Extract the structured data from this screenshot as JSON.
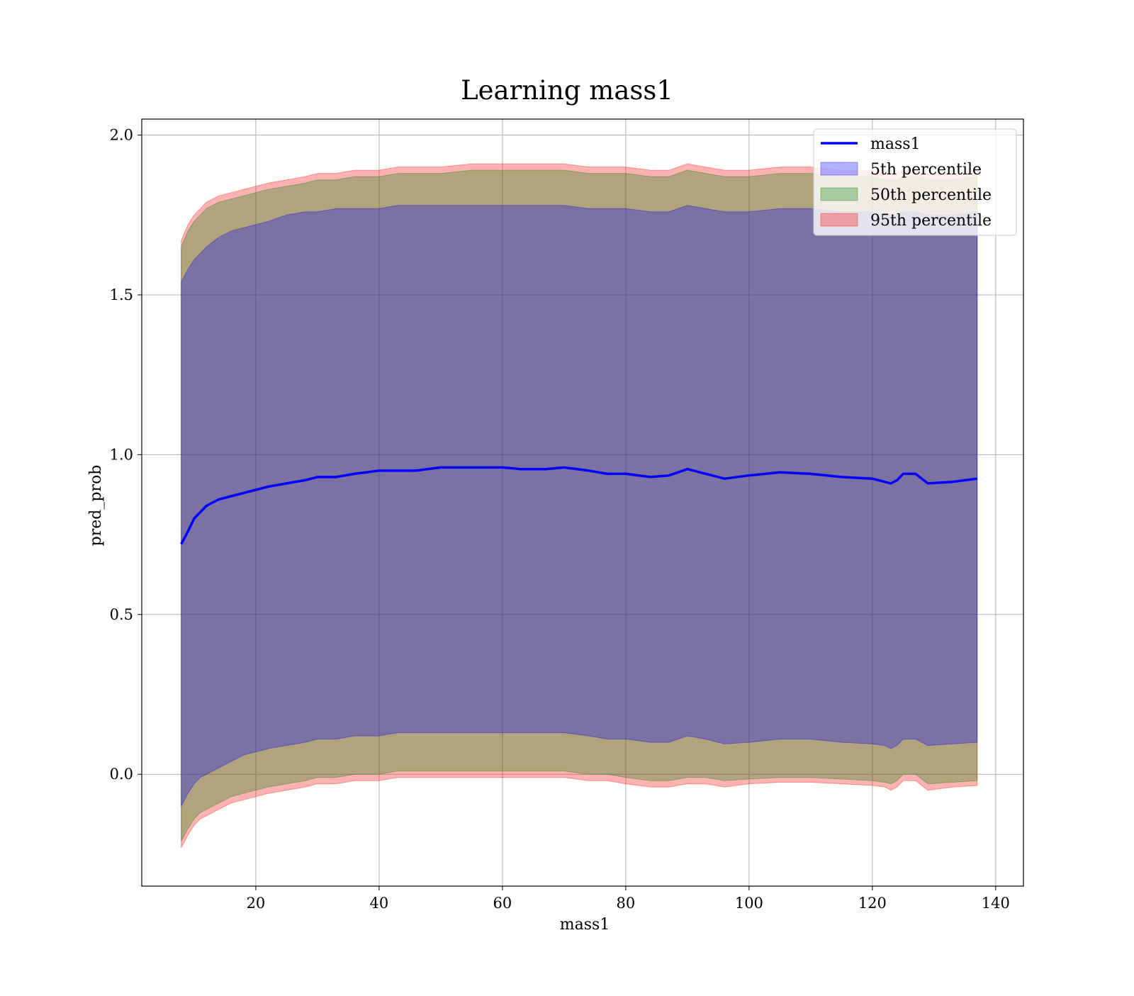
{
  "chart_data": {
    "type": "area",
    "title": "Learning mass1",
    "xlabel": "mass1",
    "ylabel": "pred_prob",
    "xlim": [
      1.5,
      144.5
    ],
    "ylim": [
      -0.35,
      2.05
    ],
    "xticks": [
      20,
      40,
      60,
      80,
      100,
      120,
      140
    ],
    "yticks": [
      0.0,
      0.5,
      1.0,
      1.5,
      2.0
    ],
    "ytick_labels": [
      "0.0",
      "0.5",
      "1.0",
      "1.5",
      "2.0"
    ],
    "grid": true,
    "legend_position": "upper right",
    "colors": {
      "line": "#0000ff",
      "p5": "#0000ff",
      "p50": "#008000",
      "p95": "#ff0000",
      "grid": "#b0b0b0"
    },
    "legend": [
      {
        "label": "mass1",
        "kind": "line",
        "color": "#0000ff"
      },
      {
        "label": "5th percentile",
        "kind": "band",
        "color": "#0000ff"
      },
      {
        "label": "50th percentile",
        "kind": "band",
        "color": "#008000"
      },
      {
        "label": "95th percentile",
        "kind": "band",
        "color": "#ff0000"
      }
    ],
    "series": [
      {
        "name": "mass1",
        "x": [
          7.9,
          9,
          10,
          11,
          12,
          14,
          16,
          18,
          20,
          22,
          25,
          28,
          30,
          33,
          36,
          40,
          43,
          46,
          50,
          55,
          60,
          63,
          67,
          70,
          74,
          77,
          80,
          84,
          87,
          90,
          93,
          96,
          100,
          105,
          110,
          115,
          120,
          122,
          123,
          124,
          125,
          127,
          129,
          133,
          137
        ],
        "y": [
          0.72,
          0.76,
          0.8,
          0.82,
          0.84,
          0.86,
          0.87,
          0.88,
          0.89,
          0.9,
          0.91,
          0.92,
          0.93,
          0.93,
          0.94,
          0.95,
          0.95,
          0.95,
          0.96,
          0.96,
          0.96,
          0.955,
          0.955,
          0.96,
          0.95,
          0.94,
          0.94,
          0.93,
          0.935,
          0.955,
          0.94,
          0.925,
          0.935,
          0.945,
          0.94,
          0.93,
          0.925,
          0.915,
          0.91,
          0.92,
          0.94,
          0.94,
          0.91,
          0.915,
          0.925
        ]
      },
      {
        "name": "5th percentile",
        "x": [
          7.9,
          9,
          10,
          11,
          12,
          14,
          16,
          18,
          20,
          22,
          25,
          28,
          30,
          33,
          36,
          40,
          43,
          46,
          50,
          55,
          60,
          63,
          67,
          70,
          74,
          77,
          80,
          84,
          87,
          90,
          93,
          96,
          100,
          105,
          110,
          115,
          120,
          122,
          123,
          124,
          125,
          127,
          129,
          133,
          137
        ],
        "lower": [
          -0.1,
          -0.06,
          -0.03,
          -0.01,
          0.0,
          0.02,
          0.04,
          0.06,
          0.07,
          0.08,
          0.09,
          0.1,
          0.11,
          0.11,
          0.12,
          0.12,
          0.13,
          0.13,
          0.13,
          0.13,
          0.13,
          0.13,
          0.13,
          0.13,
          0.12,
          0.11,
          0.11,
          0.1,
          0.1,
          0.12,
          0.11,
          0.095,
          0.1,
          0.11,
          0.11,
          0.1,
          0.095,
          0.09,
          0.08,
          0.09,
          0.11,
          0.11,
          0.09,
          0.095,
          0.1
        ],
        "upper": [
          1.54,
          1.58,
          1.61,
          1.63,
          1.65,
          1.68,
          1.7,
          1.71,
          1.72,
          1.73,
          1.75,
          1.76,
          1.76,
          1.77,
          1.77,
          1.77,
          1.78,
          1.78,
          1.78,
          1.78,
          1.78,
          1.78,
          1.78,
          1.78,
          1.77,
          1.77,
          1.77,
          1.76,
          1.76,
          1.78,
          1.77,
          1.76,
          1.76,
          1.77,
          1.77,
          1.76,
          1.76,
          1.75,
          1.75,
          1.75,
          1.76,
          1.76,
          1.75,
          1.75,
          1.76
        ]
      },
      {
        "name": "50th percentile",
        "x": [
          7.9,
          9,
          10,
          11,
          12,
          14,
          16,
          18,
          20,
          22,
          25,
          28,
          30,
          33,
          36,
          40,
          43,
          46,
          50,
          55,
          60,
          63,
          67,
          70,
          74,
          77,
          80,
          84,
          87,
          90,
          93,
          96,
          100,
          105,
          110,
          115,
          120,
          122,
          123,
          124,
          125,
          127,
          129,
          133,
          137
        ],
        "lower": [
          -0.21,
          -0.17,
          -0.14,
          -0.12,
          -0.11,
          -0.09,
          -0.07,
          -0.06,
          -0.05,
          -0.04,
          -0.03,
          -0.02,
          -0.01,
          -0.01,
          0.0,
          0.0,
          0.01,
          0.01,
          0.01,
          0.01,
          0.01,
          0.01,
          0.01,
          0.01,
          0.0,
          0.0,
          -0.01,
          -0.02,
          -0.02,
          -0.01,
          -0.01,
          -0.02,
          -0.015,
          -0.01,
          -0.01,
          -0.015,
          -0.02,
          -0.025,
          -0.03,
          -0.02,
          0.0,
          0.0,
          -0.03,
          -0.025,
          -0.02
        ],
        "upper": [
          1.65,
          1.7,
          1.73,
          1.75,
          1.77,
          1.79,
          1.8,
          1.81,
          1.82,
          1.83,
          1.84,
          1.85,
          1.86,
          1.86,
          1.87,
          1.87,
          1.88,
          1.88,
          1.88,
          1.89,
          1.89,
          1.89,
          1.89,
          1.89,
          1.88,
          1.88,
          1.88,
          1.87,
          1.87,
          1.89,
          1.88,
          1.87,
          1.87,
          1.88,
          1.88,
          1.87,
          1.87,
          1.86,
          1.86,
          1.86,
          1.87,
          1.87,
          1.86,
          1.86,
          1.87
        ]
      },
      {
        "name": "95th percentile",
        "x": [
          7.9,
          9,
          10,
          11,
          12,
          14,
          16,
          18,
          20,
          22,
          25,
          28,
          30,
          33,
          36,
          40,
          43,
          46,
          50,
          55,
          60,
          63,
          67,
          70,
          74,
          77,
          80,
          84,
          87,
          90,
          93,
          96,
          100,
          105,
          110,
          115,
          120,
          122,
          123,
          124,
          125,
          127,
          129,
          133,
          137
        ],
        "lower": [
          -0.23,
          -0.19,
          -0.16,
          -0.14,
          -0.13,
          -0.11,
          -0.09,
          -0.08,
          -0.07,
          -0.06,
          -0.05,
          -0.04,
          -0.03,
          -0.03,
          -0.02,
          -0.02,
          -0.01,
          -0.01,
          -0.01,
          -0.01,
          -0.01,
          -0.01,
          -0.01,
          -0.01,
          -0.02,
          -0.02,
          -0.03,
          -0.04,
          -0.04,
          -0.03,
          -0.03,
          -0.04,
          -0.03,
          -0.025,
          -0.025,
          -0.03,
          -0.035,
          -0.04,
          -0.05,
          -0.04,
          -0.02,
          -0.02,
          -0.05,
          -0.04,
          -0.035
        ],
        "upper": [
          1.67,
          1.72,
          1.75,
          1.77,
          1.79,
          1.81,
          1.82,
          1.83,
          1.84,
          1.85,
          1.86,
          1.87,
          1.88,
          1.88,
          1.89,
          1.89,
          1.9,
          1.9,
          1.9,
          1.91,
          1.91,
          1.91,
          1.91,
          1.91,
          1.9,
          1.9,
          1.9,
          1.89,
          1.89,
          1.91,
          1.9,
          1.89,
          1.89,
          1.9,
          1.9,
          1.89,
          1.89,
          1.88,
          1.88,
          1.88,
          1.89,
          1.89,
          1.88,
          1.88,
          1.89
        ]
      }
    ]
  }
}
